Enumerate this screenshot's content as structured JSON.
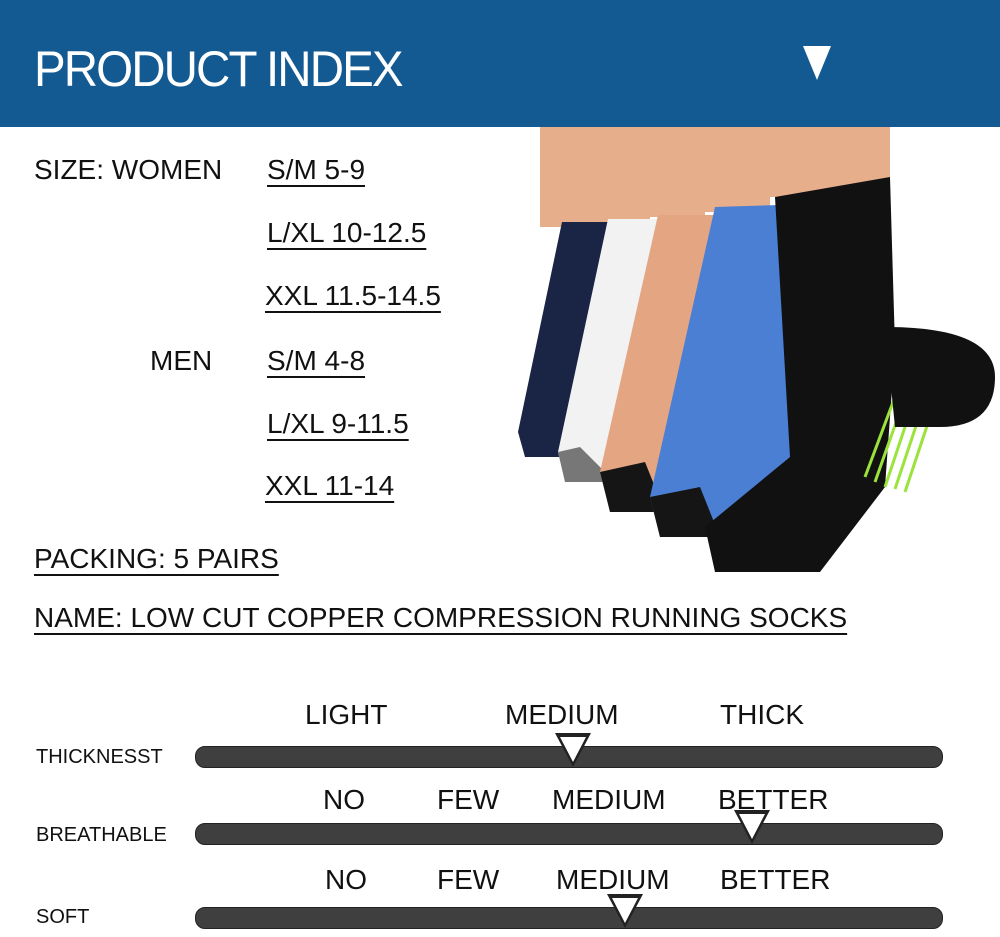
{
  "header": {
    "title": "PRODUCT INDEX",
    "icon": "down-arrow-icon",
    "color": "#135a92"
  },
  "size": {
    "label": "SIZE:",
    "women_label": "WOMEN",
    "women": [
      "S/M  5-9",
      "L/XL 10-12.5",
      "XXL  11.5-14.5"
    ],
    "men_label": "MEN",
    "men": [
      "S/M  4-8",
      "L/XL  9-11.5",
      "XXL   11-14"
    ]
  },
  "packing": "PACKING: 5 PAIRS",
  "name": "NAME: LOW CUT COPPER COMPRESSION RUNNING SOCKS",
  "sock_colors": [
    "#1a2444",
    "#f2f2f2",
    "#e4a582",
    "#4a7fd4",
    "#111111"
  ],
  "scales": [
    {
      "label": "THICKNESST",
      "levels": [
        "LIGHT",
        "MEDIUM",
        "THICK"
      ],
      "value": 0.505
    },
    {
      "label": "BREATHABLE",
      "levels": [
        "NO",
        "FEW",
        "MEDIUM",
        "BETTER"
      ],
      "value": 0.745
    },
    {
      "label": "SOFT",
      "levels": [
        "NO",
        "FEW",
        "MEDIUM",
        "BETTER"
      ],
      "value": 0.575
    }
  ]
}
